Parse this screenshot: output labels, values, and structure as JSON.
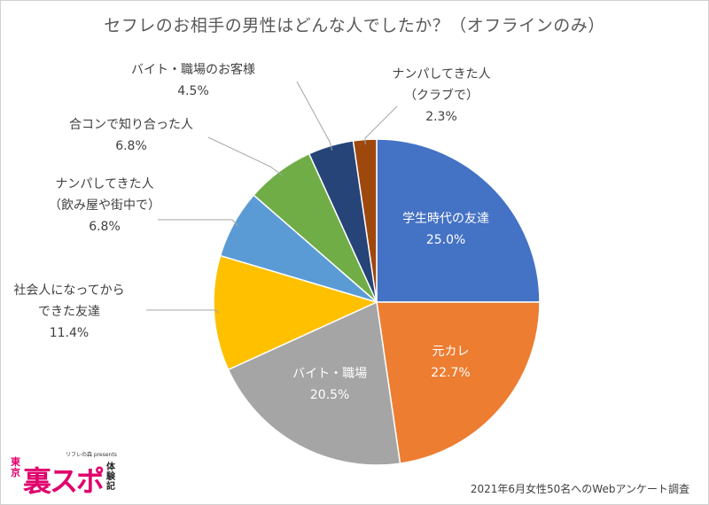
{
  "title": "セフレのお相手の男性はどんな人でしたか？（オフラインのみ）",
  "footer": "2021年6月女性50名へのWebアンケート調査",
  "logo": {
    "top": "リフレの森 presents",
    "left": "東京",
    "main": "裏スポ",
    "right": "体験記"
  },
  "chart_data": {
    "type": "pie",
    "title": "セフレのお相手の男性はどんな人でしたか？（オフラインのみ）",
    "slices": [
      {
        "label": "学生時代の友達",
        "label_lines": [
          "学生時代の友達"
        ],
        "value": 25.0,
        "value_text": "25.0%",
        "color": "#4472c4",
        "label_inside": true
      },
      {
        "label": "元カレ",
        "label_lines": [
          "元カレ"
        ],
        "value": 22.7,
        "value_text": "22.7%",
        "color": "#ed7d31",
        "label_inside": true
      },
      {
        "label": "バイト・職場",
        "label_lines": [
          "バイト・職場"
        ],
        "value": 20.5,
        "value_text": "20.5%",
        "color": "#a5a5a5",
        "label_inside": true
      },
      {
        "label": "社会人になってからできた友達",
        "label_lines": [
          "社会人になってから",
          "できた友達"
        ],
        "value": 11.4,
        "value_text": "11.4%",
        "color": "#ffc000",
        "label_inside": false
      },
      {
        "label": "ナンパしてきた人（飲み屋や街中で）",
        "label_lines": [
          "ナンパしてきた人",
          "（飲み屋や街中で）"
        ],
        "value": 6.8,
        "value_text": "6.8%",
        "color": "#5b9bd5",
        "label_inside": false
      },
      {
        "label": "合コンで知り合った人",
        "label_lines": [
          "合コンで知り合った人"
        ],
        "value": 6.8,
        "value_text": "6.8%",
        "color": "#70ad47",
        "label_inside": false
      },
      {
        "label": "バイト・職場のお客様",
        "label_lines": [
          "バイト・職場のお客様"
        ],
        "value": 4.5,
        "value_text": "4.5%",
        "color": "#264478",
        "label_inside": false
      },
      {
        "label": "ナンパしてきた人（クラブで）",
        "label_lines": [
          "ナンパしてきた人",
          "（クラブで）"
        ],
        "value": 2.3,
        "value_text": "2.3%",
        "color": "#9e480e",
        "label_inside": false
      }
    ]
  }
}
